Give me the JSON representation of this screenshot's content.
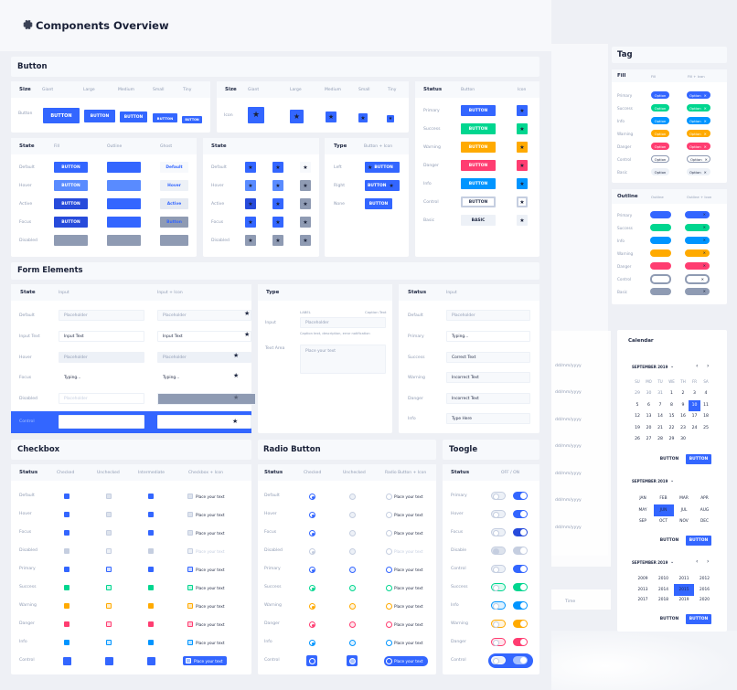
{
  "page": {
    "title": "Components Overview"
  },
  "button": {
    "title": "Button",
    "size1": {
      "header": "Size",
      "cols": [
        "Giant",
        "Large",
        "Medium",
        "Small",
        "Tiny"
      ],
      "row": "Button",
      "label": "BUTTON"
    },
    "size2": {
      "header": "Size",
      "cols": [
        "Giant",
        "Large",
        "Medium",
        "Small",
        "Tiny"
      ],
      "row": "Icon"
    },
    "status": {
      "header": "Status",
      "cols": [
        "Button",
        "Icon"
      ],
      "rows": [
        "Primary",
        "Success",
        "Warning",
        "Danger",
        "Info",
        "Control",
        "Basic"
      ],
      "label": "BUTTON",
      "basic": "BASIC"
    },
    "state1": {
      "header": "State",
      "cols": [
        "Fill",
        "Outline",
        "Ghost"
      ],
      "rows": [
        "Default",
        "Hover",
        "Active",
        "Focus",
        "Disabled"
      ],
      "label": "BUTTON",
      "ghost": [
        "Default",
        "Hover",
        "Active",
        "Button"
      ]
    },
    "state2": {
      "header": "State",
      "rows": [
        "Default",
        "Hover",
        "Active",
        "Focus",
        "Disabled"
      ]
    },
    "type": {
      "header": "Type",
      "col": "Button + Icon",
      "rows": [
        "Left",
        "Right",
        "None"
      ],
      "label": "BUTTON"
    }
  },
  "form": {
    "title": "Form Elements",
    "state": {
      "header": "State",
      "cols": [
        "Input",
        "Input + Icon"
      ],
      "rows": [
        "Default",
        "Input Text",
        "Hover",
        "Focus",
        "Disabled",
        "Control"
      ],
      "vals": [
        "Placeholder",
        "Input Text",
        "Placeholder",
        "Typing...",
        "Placeholder",
        ""
      ],
      "vals2": [
        "Placeholder",
        "Input Text",
        "Placeholder",
        "Typing...",
        "",
        ""
      ]
    },
    "type": {
      "header": "Type",
      "rows": [
        "Input",
        "Text Area"
      ],
      "label": "LABEL",
      "caption": "Caption Text",
      "placeholder": "Placeholder",
      "helper": "Caption text, description, error notification",
      "textarea": "Place your text"
    },
    "status": {
      "header": "Status",
      "col": "Input",
      "rows": [
        "Default",
        "Primary",
        "Success",
        "Warning",
        "Danger",
        "Info"
      ],
      "vals": [
        "Placeholder",
        "Typing...",
        "Correct Text",
        "Incorrect Text",
        "Incorrect Text",
        "Type Here"
      ]
    }
  },
  "checkbox": {
    "title": "Checkbox",
    "header": "Status",
    "cols": [
      "Checked",
      "Unchecked",
      "Intermediate",
      "Checkbox + Icon"
    ],
    "rows": [
      "Default",
      "Hover",
      "Focus",
      "Disabled",
      "Primary",
      "Success",
      "Warning",
      "Danger",
      "Info",
      "Control"
    ],
    "text": "Place your text"
  },
  "radio": {
    "title": "Radio Button",
    "header": "Status",
    "cols": [
      "Checked",
      "Unchecked",
      "Radio Button + Icon"
    ],
    "rows": [
      "Default",
      "Hover",
      "Focus",
      "Disabled",
      "Primary",
      "Success",
      "Warning",
      "Danger",
      "Info",
      "Control"
    ],
    "text": "Place your text"
  },
  "toggle": {
    "title": "Toogle",
    "header": "Status",
    "col": "OFF / ON",
    "rows": [
      "Primary",
      "Hover",
      "Focus",
      "Disable",
      "Control",
      "Success",
      "Info",
      "Warning",
      "Danger",
      "Control"
    ]
  },
  "tag": {
    "title": "Tag",
    "fill": {
      "header": "Fill",
      "cols": [
        "Fill",
        "Fill + Icon"
      ],
      "rows": [
        "Primary",
        "Success",
        "Info",
        "Warning",
        "Danger",
        "Control",
        "Basic"
      ],
      "label": "Option"
    },
    "outline": {
      "header": "Outline",
      "cols": [
        "Outline",
        "Outline + Icon"
      ],
      "rows": [
        "Primary",
        "Success",
        "Info",
        "Warning",
        "Danger",
        "Control",
        "Basic"
      ]
    }
  },
  "calendar": {
    "title": "Calendar",
    "month": "SEPTEMBER 2019",
    "days": [
      "SU",
      "MO",
      "TU",
      "WE",
      "TH",
      "FR",
      "SA"
    ],
    "dates": [
      "1",
      "2",
      "3",
      "4",
      "5",
      "6",
      "7",
      "8",
      "9",
      "10",
      "11",
      "12",
      "13",
      "14",
      "15",
      "16",
      "17",
      "18",
      "19",
      "20",
      "21",
      "22",
      "23",
      "24",
      "25",
      "26",
      "27",
      "28",
      "29",
      "30"
    ],
    "prev": [
      "29",
      "30",
      "31"
    ],
    "selected": "10",
    "months": [
      "JAN",
      "FEB",
      "MAR",
      "APR",
      "MAY",
      "JUN",
      "JUL",
      "AUG",
      "SEP",
      "OCT",
      "NOV",
      "DEC"
    ],
    "years": [
      "2009",
      "2010",
      "2011",
      "2012",
      "2013",
      "2014",
      "2015",
      "2016",
      "2017",
      "2018",
      "2019",
      "2020"
    ],
    "button": "BUTTON"
  },
  "bg": {
    "placeholder": "dd/mm/yyyy",
    "time": "Time"
  },
  "colors": {
    "primary": "#3366ff",
    "success": "#00d68f",
    "warning": "#ffaa00",
    "danger": "#ff3d71",
    "info": "#0095ff",
    "basic": "#8f9bb3"
  }
}
